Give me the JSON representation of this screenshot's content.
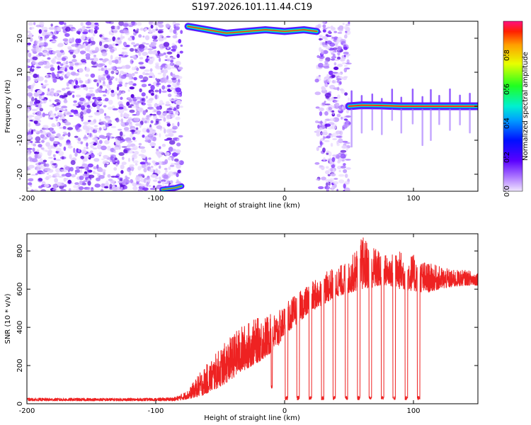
{
  "chart_data": [
    {
      "type": "heatmap",
      "title": "S197.2026.101.11.44.C19",
      "xlabel": "Height of straight line (km)",
      "ylabel": "Frequency (Hz)",
      "xlim": [
        -200,
        150
      ],
      "ylim": [
        -25,
        25
      ],
      "xticks": [
        -200,
        -100,
        0,
        100
      ],
      "yticks": [
        -20,
        -10,
        0,
        10,
        20
      ],
      "colorbar": {
        "label": "Normalized spectral amplitude",
        "range": [
          0,
          1
        ],
        "ticks": [
          "0.0",
          "0.2",
          "0.4",
          "0.6",
          "0.8"
        ],
        "colormap": "rainbow (purple to red)"
      },
      "regions": [
        {
          "name": "noise",
          "x_range": [
            -200,
            -80
          ],
          "description": "scattered low-amplitude noise"
        },
        {
          "name": "quiet",
          "x_range": [
            -80,
            25
          ],
          "description": "near-zero amplitude"
        },
        {
          "name": "noise",
          "x_range": [
            25,
            50
          ],
          "description": "scattered low-amplitude noise"
        },
        {
          "name": "signal",
          "x_range": [
            50,
            150
          ],
          "description": "no noise"
        }
      ],
      "traces": [
        {
          "name": "upper-wrapped tone",
          "x": [
            -75,
            -60,
            -45,
            -30,
            -15,
            0,
            15,
            25
          ],
          "y": [
            23.5,
            22.5,
            21.5,
            22.0,
            22.5,
            22.0,
            22.5,
            22.0
          ]
        },
        {
          "name": "lower-wrapped tone",
          "x": [
            -95,
            -85,
            -80
          ],
          "y": [
            -24.5,
            -24.0,
            -23.5
          ]
        },
        {
          "name": "carrier tone",
          "x": [
            50,
            60,
            75,
            90,
            105,
            120,
            135,
            150
          ],
          "y": [
            0.0,
            0.3,
            0.2,
            0.0,
            0.0,
            0.0,
            0.0,
            0.0
          ]
        }
      ]
    },
    {
      "type": "line",
      "title": "",
      "xlabel": "Height of straight line (km)",
      "ylabel": "SNR (10 * v/v)",
      "xlim": [
        -200,
        150
      ],
      "ylim": [
        0,
        890
      ],
      "xticks": [
        -200,
        -100,
        0,
        100
      ],
      "yticks": [
        0,
        200,
        400,
        600,
        800
      ],
      "series": [
        {
          "name": "SNR",
          "color": "#ee2222",
          "envelope_x": [
            -200,
            -150,
            -100,
            -85,
            -75,
            -65,
            -55,
            -45,
            -35,
            -25,
            -15,
            -5,
            0,
            10,
            20,
            30,
            40,
            50,
            60,
            70,
            80,
            90,
            100,
            110,
            120,
            130,
            140,
            150
          ],
          "envelope_lower": [
            15,
            15,
            15,
            15,
            25,
            40,
            70,
            110,
            160,
            200,
            240,
            300,
            360,
            420,
            480,
            520,
            560,
            580,
            600,
            610,
            620,
            600,
            590,
            580,
            600,
            610,
            620,
            620
          ],
          "envelope_upper": [
            30,
            30,
            30,
            35,
            70,
            170,
            250,
            330,
            400,
            440,
            460,
            480,
            520,
            580,
            630,
            680,
            720,
            740,
            880,
            820,
            780,
            800,
            780,
            740,
            720,
            700,
            700,
            690
          ],
          "dropouts": [
            {
              "x": [
                -10.5,
                -9.5
              ],
              "y": 90
            },
            {
              "x": [
                0.5,
                2.5
              ],
              "y": 30
            },
            {
              "x": [
                9.5,
                11.5
              ],
              "y": 30
            },
            {
              "x": [
                19,
                21
              ],
              "y": 30
            },
            {
              "x": [
                28.5,
                30.5
              ],
              "y": 30
            },
            {
              "x": [
                37.5,
                39.5
              ],
              "y": 30
            },
            {
              "x": [
                47,
                49
              ],
              "y": 30
            },
            {
              "x": [
                56.5,
                58.5
              ],
              "y": 30
            },
            {
              "x": [
                65.5,
                67.5
              ],
              "y": 30
            },
            {
              "x": [
                75,
                77
              ],
              "y": 30
            },
            {
              "x": [
                84,
                86
              ],
              "y": 30
            },
            {
              "x": [
                93.5,
                95.5
              ],
              "y": 30
            },
            {
              "x": [
                103,
                105
              ],
              "y": 30
            }
          ]
        }
      ]
    }
  ]
}
